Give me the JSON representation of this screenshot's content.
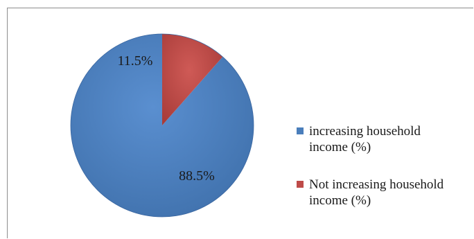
{
  "chart_data": {
    "type": "pie",
    "title": "",
    "slices": [
      {
        "name": "increasing household income (%)",
        "value": 88.5,
        "label": "88.5%",
        "color": "#4a7ebb"
      },
      {
        "name": "Not increasing household income (%)",
        "value": 11.5,
        "label": "11.5%",
        "color": "#be4b48"
      }
    ],
    "start_angle_deg": 0,
    "direction": "counterclockwise",
    "legend": {
      "placement": "right",
      "entries": [
        {
          "line1": "increasing household",
          "line2": "income (%)",
          "color": "#4a7ebb"
        },
        {
          "line1": "Not increasing household",
          "line2": "income (%)",
          "color": "#be4b48"
        }
      ]
    }
  }
}
